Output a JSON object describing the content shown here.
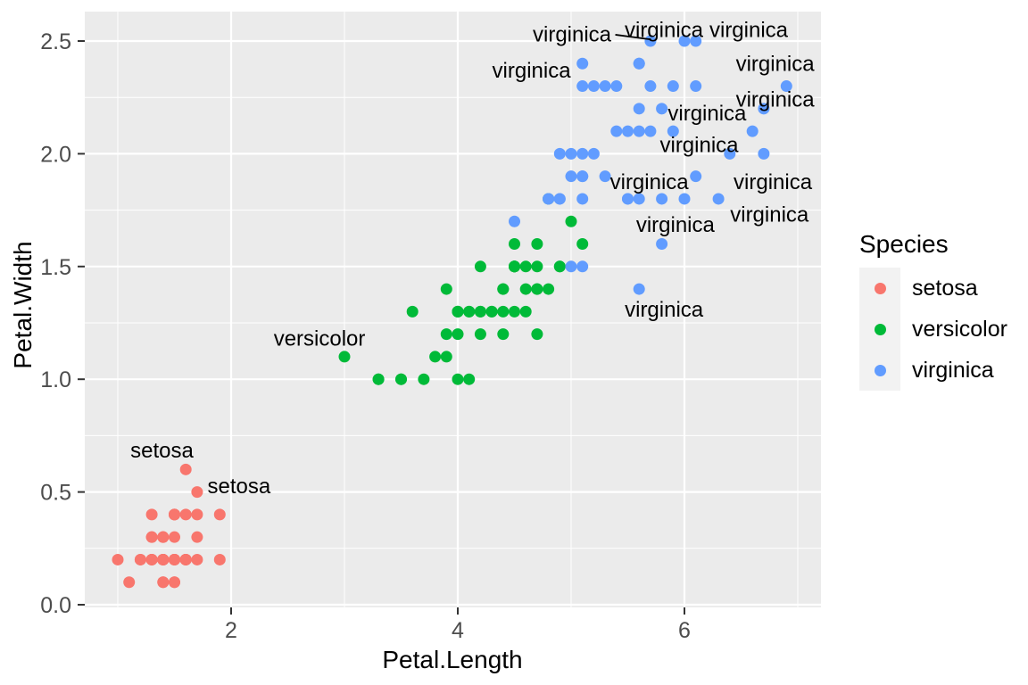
{
  "figure": {
    "x_axis_title": "Petal.Length",
    "y_axis_title": "Petal.Width"
  },
  "legend": {
    "title": "Species",
    "items": [
      {
        "label": "setosa",
        "color": "#F8766D"
      },
      {
        "label": "versicolor",
        "color": "#00BA38"
      },
      {
        "label": "virginica",
        "color": "#619CFF"
      }
    ]
  },
  "colors": {
    "panel_bg": "#EBEBEB",
    "grid": "#FFFFFF",
    "tick": "#333333",
    "tick_label": "#4D4D4D",
    "legend_key_bg": "#F2F2F2",
    "annotation": "#000000"
  },
  "chart_data": {
    "type": "scatter",
    "title": "",
    "xlabel": "Petal.Length",
    "ylabel": "Petal.Width",
    "xlim": [
      0.71,
      7.21
    ],
    "ylim": [
      -0.02,
      2.63
    ],
    "grid": true,
    "legend_position": "right",
    "x_ticks": [
      "2",
      "4",
      "6"
    ],
    "y_ticks": [
      "0.0",
      "0.5",
      "1.0",
      "1.5",
      "2.0",
      "2.5"
    ],
    "x_minor": [
      1,
      3,
      5,
      7
    ],
    "y_minor": [
      0.25,
      0.75,
      1.25,
      1.75,
      2.25
    ],
    "point_radius_px": 6.5,
    "series": [
      {
        "name": "setosa",
        "color": "#F8766D",
        "points": [
          [
            1.4,
            0.2
          ],
          [
            1.4,
            0.2
          ],
          [
            1.3,
            0.2
          ],
          [
            1.5,
            0.2
          ],
          [
            1.4,
            0.2
          ],
          [
            1.7,
            0.4
          ],
          [
            1.4,
            0.3
          ],
          [
            1.5,
            0.2
          ],
          [
            1.4,
            0.2
          ],
          [
            1.5,
            0.1
          ],
          [
            1.5,
            0.2
          ],
          [
            1.6,
            0.2
          ],
          [
            1.4,
            0.1
          ],
          [
            1.1,
            0.1
          ],
          [
            1.2,
            0.2
          ],
          [
            1.5,
            0.4
          ],
          [
            1.3,
            0.4
          ],
          [
            1.4,
            0.3
          ],
          [
            1.7,
            0.3
          ],
          [
            1.5,
            0.3
          ],
          [
            1.7,
            0.2
          ],
          [
            1.5,
            0.4
          ],
          [
            1.0,
            0.2
          ],
          [
            1.7,
            0.5
          ],
          [
            1.9,
            0.2
          ],
          [
            1.6,
            0.2
          ],
          [
            1.6,
            0.4
          ],
          [
            1.5,
            0.2
          ],
          [
            1.4,
            0.2
          ],
          [
            1.6,
            0.2
          ],
          [
            1.6,
            0.2
          ],
          [
            1.5,
            0.4
          ],
          [
            1.5,
            0.1
          ],
          [
            1.4,
            0.2
          ],
          [
            1.5,
            0.2
          ],
          [
            1.2,
            0.2
          ],
          [
            1.3,
            0.2
          ],
          [
            1.4,
            0.1
          ],
          [
            1.3,
            0.2
          ],
          [
            1.5,
            0.2
          ],
          [
            1.3,
            0.3
          ],
          [
            1.3,
            0.3
          ],
          [
            1.3,
            0.2
          ],
          [
            1.6,
            0.6
          ],
          [
            1.9,
            0.4
          ],
          [
            1.4,
            0.3
          ],
          [
            1.6,
            0.2
          ],
          [
            1.4,
            0.2
          ],
          [
            1.5,
            0.2
          ],
          [
            1.4,
            0.2
          ]
        ]
      },
      {
        "name": "versicolor",
        "color": "#00BA38",
        "points": [
          [
            4.7,
            1.4
          ],
          [
            4.5,
            1.5
          ],
          [
            4.9,
            1.5
          ],
          [
            4.0,
            1.3
          ],
          [
            4.6,
            1.5
          ],
          [
            4.5,
            1.3
          ],
          [
            4.7,
            1.6
          ],
          [
            3.3,
            1.0
          ],
          [
            4.6,
            1.3
          ],
          [
            3.9,
            1.4
          ],
          [
            3.5,
            1.0
          ],
          [
            4.2,
            1.5
          ],
          [
            4.0,
            1.0
          ],
          [
            4.7,
            1.4
          ],
          [
            3.6,
            1.3
          ],
          [
            4.4,
            1.4
          ],
          [
            4.5,
            1.5
          ],
          [
            4.1,
            1.0
          ],
          [
            4.5,
            1.5
          ],
          [
            3.9,
            1.1
          ],
          [
            4.8,
            1.8
          ],
          [
            4.0,
            1.3
          ],
          [
            4.9,
            1.5
          ],
          [
            4.7,
            1.2
          ],
          [
            4.3,
            1.3
          ],
          [
            4.4,
            1.4
          ],
          [
            4.8,
            1.4
          ],
          [
            5.0,
            1.7
          ],
          [
            4.5,
            1.5
          ],
          [
            3.5,
            1.0
          ],
          [
            3.8,
            1.1
          ],
          [
            3.7,
            1.0
          ],
          [
            3.9,
            1.2
          ],
          [
            5.1,
            1.6
          ],
          [
            4.5,
            1.5
          ],
          [
            4.5,
            1.6
          ],
          [
            4.7,
            1.5
          ],
          [
            4.4,
            1.3
          ],
          [
            4.1,
            1.3
          ],
          [
            4.0,
            1.3
          ],
          [
            4.4,
            1.2
          ],
          [
            4.6,
            1.4
          ],
          [
            4.0,
            1.2
          ],
          [
            3.3,
            1.0
          ],
          [
            4.2,
            1.3
          ],
          [
            4.2,
            1.2
          ],
          [
            4.2,
            1.3
          ],
          [
            4.3,
            1.3
          ],
          [
            3.0,
            1.1
          ],
          [
            4.1,
            1.3
          ]
        ]
      },
      {
        "name": "virginica",
        "color": "#619CFF",
        "points": [
          [
            6.0,
            2.5
          ],
          [
            5.1,
            1.9
          ],
          [
            5.9,
            2.1
          ],
          [
            5.6,
            1.8
          ],
          [
            5.8,
            2.2
          ],
          [
            6.6,
            2.1
          ],
          [
            4.5,
            1.7
          ],
          [
            6.3,
            1.8
          ],
          [
            5.8,
            1.8
          ],
          [
            6.1,
            2.5
          ],
          [
            5.1,
            2.0
          ],
          [
            5.3,
            1.9
          ],
          [
            5.5,
            2.1
          ],
          [
            5.0,
            2.0
          ],
          [
            5.1,
            2.4
          ],
          [
            5.3,
            2.3
          ],
          [
            5.5,
            1.8
          ],
          [
            6.7,
            2.2
          ],
          [
            6.9,
            2.3
          ],
          [
            5.0,
            1.5
          ],
          [
            5.7,
            2.3
          ],
          [
            4.9,
            2.0
          ],
          [
            6.7,
            2.0
          ],
          [
            4.9,
            1.8
          ],
          [
            5.7,
            2.1
          ],
          [
            6.0,
            1.8
          ],
          [
            4.8,
            1.8
          ],
          [
            4.9,
            1.8
          ],
          [
            5.6,
            2.1
          ],
          [
            5.8,
            1.6
          ],
          [
            6.1,
            1.9
          ],
          [
            6.4,
            2.0
          ],
          [
            5.6,
            2.2
          ],
          [
            5.1,
            1.5
          ],
          [
            5.6,
            1.4
          ],
          [
            6.1,
            2.3
          ],
          [
            5.6,
            2.4
          ],
          [
            5.5,
            1.8
          ],
          [
            4.8,
            1.8
          ],
          [
            5.4,
            2.1
          ],
          [
            5.6,
            2.4
          ],
          [
            5.1,
            2.3
          ],
          [
            5.1,
            1.9
          ],
          [
            5.9,
            2.3
          ],
          [
            5.7,
            2.5
          ],
          [
            5.2,
            2.3
          ],
          [
            5.0,
            1.9
          ],
          [
            5.2,
            2.0
          ],
          [
            5.4,
            2.3
          ],
          [
            5.1,
            1.8
          ]
        ]
      }
    ],
    "annotations": [
      {
        "text": "virginica",
        "x": 5.008,
        "y": 2.53
      },
      {
        "text": "virginica",
        "x": 5.819,
        "y": 2.55
      },
      {
        "text": "virginica",
        "x": 6.567,
        "y": 2.55
      },
      {
        "text": "virginica",
        "x": 4.65,
        "y": 2.37
      },
      {
        "text": "virginica",
        "x": 6.8,
        "y": 2.4
      },
      {
        "text": "virginica",
        "x": 6.8,
        "y": 2.24
      },
      {
        "text": "virginica",
        "x": 6.2,
        "y": 2.18
      },
      {
        "text": "virginica",
        "x": 6.13,
        "y": 2.04
      },
      {
        "text": "virginica",
        "x": 5.69,
        "y": 1.875
      },
      {
        "text": "virginica",
        "x": 6.78,
        "y": 1.875
      },
      {
        "text": "virginica",
        "x": 6.75,
        "y": 1.73
      },
      {
        "text": "virginica",
        "x": 5.92,
        "y": 1.685
      },
      {
        "text": "virginica",
        "x": 5.82,
        "y": 1.31
      },
      {
        "text": "versicolor",
        "x": 2.78,
        "y": 1.18
      },
      {
        "text": "setosa",
        "x": 1.39,
        "y": 0.684
      },
      {
        "text": "setosa",
        "x": 2.07,
        "y": 0.526
      }
    ],
    "leader_segments": [
      {
        "x1": 5.39,
        "y1": 2.528,
        "x2": 5.705,
        "y2": 2.507
      }
    ]
  }
}
